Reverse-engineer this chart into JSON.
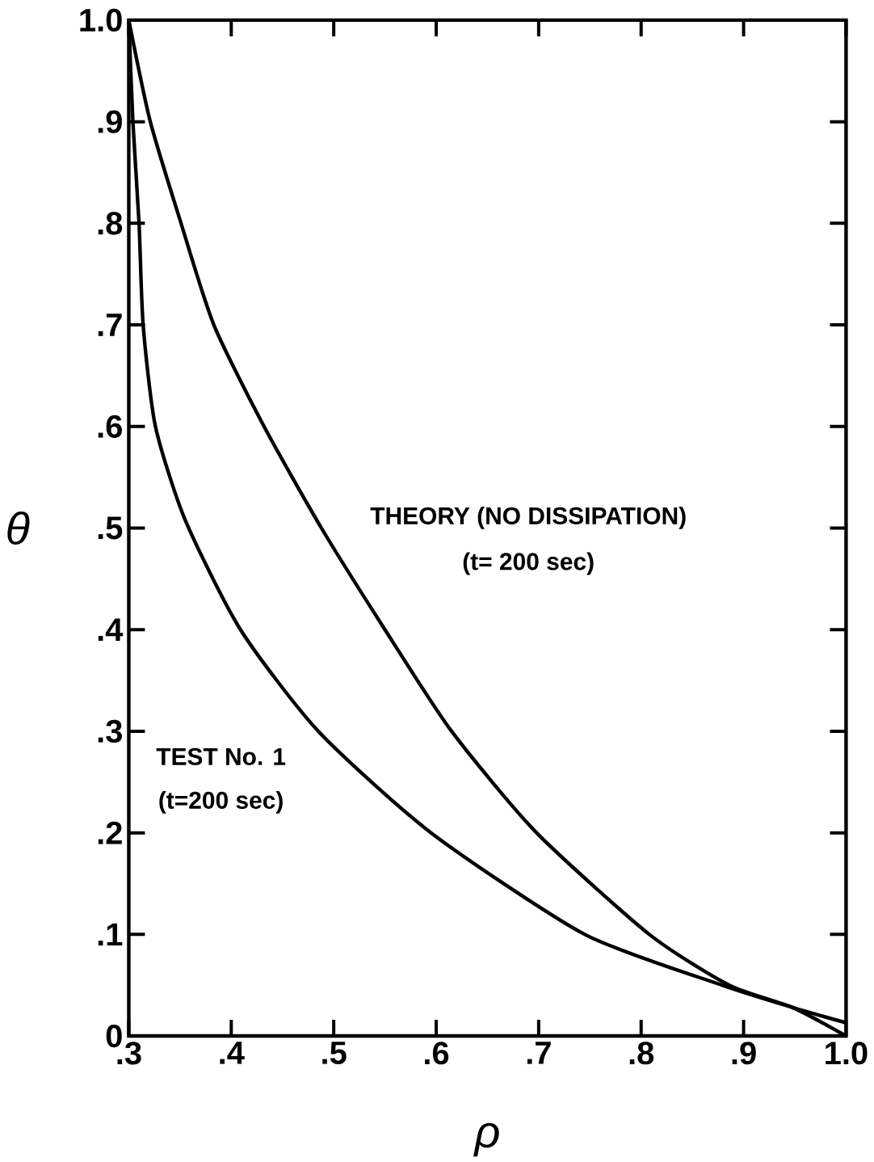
{
  "chart_data": {
    "type": "line",
    "xlabel": "ρ",
    "ylabel": "θ",
    "xlim": [
      0.3,
      1.0
    ],
    "ylim": [
      0,
      1.0
    ],
    "xticks": [
      {
        "value": 0.3,
        "label": ".3"
      },
      {
        "value": 0.4,
        "label": ".4"
      },
      {
        "value": 0.5,
        "label": ".5"
      },
      {
        "value": 0.6,
        "label": ".6"
      },
      {
        "value": 0.7,
        "label": ".7"
      },
      {
        "value": 0.8,
        "label": ".8"
      },
      {
        "value": 0.9,
        "label": ".9"
      },
      {
        "value": 1.0,
        "label": "1.0"
      }
    ],
    "yticks": [
      0,
      {
        "value": 0.1,
        "label": ".1"
      },
      {
        "value": 0.2,
        "label": ".2"
      },
      {
        "value": 0.3,
        "label": ".3"
      },
      {
        "value": 0.4,
        "label": ".4"
      },
      {
        "value": 0.5,
        "label": ".5"
      },
      {
        "value": 0.6,
        "label": ".6"
      },
      {
        "value": 0.7,
        "label": ".7"
      },
      {
        "value": 0.8,
        "label": ".8"
      },
      {
        "value": 0.9,
        "label": ".9"
      },
      {
        "value": 1.0,
        "label": "1.0"
      }
    ],
    "series": [
      {
        "color": "#000000",
        "x": [
          0.3,
          0.321,
          0.351,
          0.383,
          0.432,
          0.488,
          0.55,
          0.615,
          0.698,
          0.808,
          0.886,
          0.948,
          1.0
        ],
        "values": [
          1.0,
          0.9,
          0.8,
          0.7,
          0.6,
          0.5,
          0.4,
          0.3,
          0.2,
          0.1,
          0.05,
          0.028,
          0.0
        ]
      },
      {
        "color": "#000000",
        "x": [
          0.3,
          0.304,
          0.31,
          0.314,
          0.326,
          0.355,
          0.409,
          0.485,
          0.595,
          0.745,
          0.879,
          0.948,
          1.0
        ],
        "values": [
          1.0,
          0.9,
          0.8,
          0.7,
          0.6,
          0.508,
          0.4,
          0.3,
          0.2,
          0.1,
          0.05,
          0.028,
          0.013
        ]
      }
    ],
    "annotations": [
      "THEORY (NO DISSIPATION)",
      "(t= 200 sec)",
      "TEST No. 1",
      "(t=200 sec)"
    ],
    "marker": "none",
    "line_style": "solid"
  }
}
